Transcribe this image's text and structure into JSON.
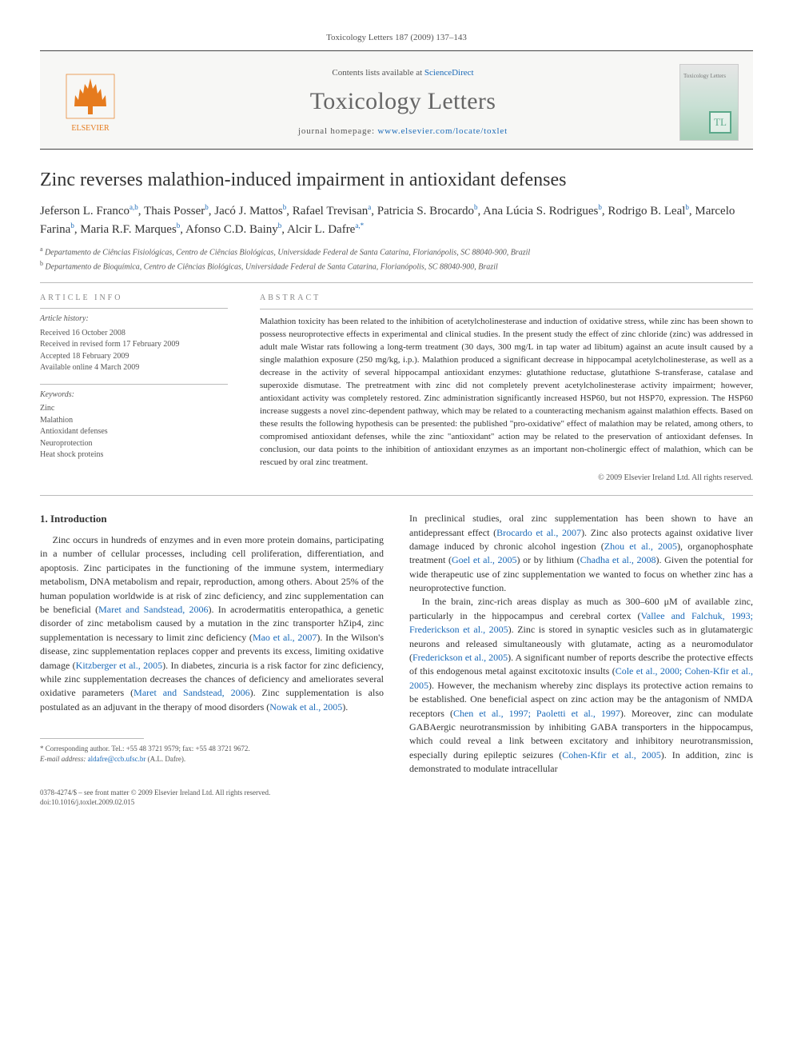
{
  "meta": {
    "top_citation": "Toxicology Letters 187 (2009) 137–143",
    "contents_prefix": "Contents lists available at ",
    "contents_link": "ScienceDirect",
    "journal_name": "Toxicology Letters",
    "homepage_prefix": "journal homepage: ",
    "homepage_url": "www.elsevier.com/locate/toxlet",
    "publisher_logo_label": "ELSEVIER",
    "cover_label": "Toxicology Letters",
    "cover_tl": "TL"
  },
  "article": {
    "title": "Zinc reverses malathion-induced impairment in antioxidant defenses",
    "authors_html": "Jeferson L. Franco<sup>a,b</sup>, Thais Posser<sup>b</sup>, Jacó J. Mattos<sup>b</sup>, Rafael Trevisan<sup>a</sup>, Patricia S. Brocardo<sup>b</sup>, Ana Lúcia S. Rodrigues<sup>b</sup>, Rodrigo B. Leal<sup>b</sup>, Marcelo Farina<sup>b</sup>, Maria R.F. Marques<sup>b</sup>, Afonso C.D. Bainy<sup>b</sup>, Alcir L. Dafre<sup>a,*</sup>",
    "affiliations": {
      "a": "Departamento de Ciências Fisiológicas, Centro de Ciências Biológicas, Universidade Federal de Santa Catarina, Florianópolis, SC 88040-900, Brazil",
      "b": "Departamento de Bioquímica, Centro de Ciências Biológicas, Universidade Federal de Santa Catarina, Florianópolis, SC 88040-900, Brazil"
    }
  },
  "info": {
    "head1": "ARTICLE INFO",
    "history_label": "Article history:",
    "history": [
      "Received 16 October 2008",
      "Received in revised form 17 February 2009",
      "Accepted 18 February 2009",
      "Available online 4 March 2009"
    ],
    "keywords_label": "Keywords:",
    "keywords": [
      "Zinc",
      "Malathion",
      "Antioxidant defenses",
      "Neuroprotection",
      "Heat shock proteins"
    ]
  },
  "abstract": {
    "head": "ABSTRACT",
    "text": "Malathion toxicity has been related to the inhibition of acetylcholinesterase and induction of oxidative stress, while zinc has been shown to possess neuroprotective effects in experimental and clinical studies. In the present study the effect of zinc chloride (zinc) was addressed in adult male Wistar rats following a long-term treatment (30 days, 300 mg/L in tap water ad libitum) against an acute insult caused by a single malathion exposure (250 mg/kg, i.p.). Malathion produced a significant decrease in hippocampal acetylcholinesterase, as well as a decrease in the activity of several hippocampal antioxidant enzymes: glutathione reductase, glutathione S-transferase, catalase and superoxide dismutase. The pretreatment with zinc did not completely prevent acetylcholinesterase activity impairment; however, antioxidant activity was completely restored. Zinc administration significantly increased HSP60, but not HSP70, expression. The HSP60 increase suggests a novel zinc-dependent pathway, which may be related to a counteracting mechanism against malathion effects. Based on these results the following hypothesis can be presented: the published \"pro-oxidative\" effect of malathion may be related, among others, to compromised antioxidant defenses, while the zinc \"antioxidant\" action may be related to the preservation of antioxidant defenses. In conclusion, our data points to the inhibition of antioxidant enzymes as an important non-cholinergic effect of malathion, which can be rescued by oral zinc treatment.",
    "copyright": "© 2009 Elsevier Ireland Ltd. All rights reserved."
  },
  "body": {
    "section_num": "1.",
    "section_title": "Introduction",
    "left_p1": "Zinc occurs in hundreds of enzymes and in even more protein domains, participating in a number of cellular processes, including cell proliferation, differentiation, and apoptosis. Zinc participates in the functioning of the immune system, intermediary metabolism, DNA metabolism and repair, reproduction, among others. About 25% of the human population worldwide is at risk of zinc deficiency, and zinc supplementation can be beneficial (",
    "cite1": "Maret and Sandstead, 2006",
    "left_p1b": "). In acrodermatitis enteropathica, a genetic disorder of zinc metabolism caused by a mutation in the zinc transporter hZip4, zinc supplementation is necessary to limit zinc deficiency (",
    "cite2": "Mao et al., 2007",
    "left_p1c": "). In the Wilson's disease, zinc supplementation replaces copper and prevents its excess, limiting oxidative damage (",
    "cite3": "Kitzberger et al., 2005",
    "left_p1d": "). In diabetes, zincuria is a risk factor for zinc deficiency, while zinc supplementation decreases the chances of deficiency and ameliorates several oxidative parameters (",
    "cite4": "Maret and Sandstead, 2006",
    "left_p1e": "). Zinc supplementation is also postulated as an adjuvant in the therapy of mood disorders (",
    "cite5": "Nowak et al., 2005",
    "left_p1f": ").",
    "right_p1a": "In preclinical studies, oral zinc supplementation has been shown to have an antidepressant effect (",
    "cite6": "Brocardo et al., 2007",
    "right_p1b": "). Zinc also protects against oxidative liver damage induced by chronic alcohol ingestion (",
    "cite7": "Zhou et al., 2005",
    "right_p1c": "), organophosphate treatment (",
    "cite8": "Goel et al., 2005",
    "right_p1d": ") or by lithium (",
    "cite9": "Chadha et al., 2008",
    "right_p1e": "). Given the potential for wide therapeutic use of zinc supplementation we wanted to focus on whether zinc has a neuroprotective function.",
    "right_p2a": "In the brain, zinc-rich areas display as much as 300–600 μM of available zinc, particularly in the hippocampus and cerebral cortex (",
    "cite10": "Vallee and Falchuk, 1993; Frederickson et al., 2005",
    "right_p2b": "). Zinc is stored in synaptic vesicles such as in glutamatergic neurons and released simultaneously with glutamate, acting as a neuromodulator (",
    "cite11": "Frederickson et al., 2005",
    "right_p2c": "). A significant number of reports describe the protective effects of this endogenous metal against excitotoxic insults (",
    "cite12": "Cole et al., 2000; Cohen-Kfir et al., 2005",
    "right_p2d": "). However, the mechanism whereby zinc displays its protective action remains to be established. One beneficial aspect on zinc action may be the antagonism of NMDA receptors (",
    "cite13": "Chen et al., 1997; Paoletti et al., 1997",
    "right_p2e": "). Moreover, zinc can modulate GABAergic neurotransmission by inhibiting GABA transporters in the hippocampus, which could reveal a link between excitatory and inhibitory neurotransmission, especially during epileptic seizures (",
    "cite14": "Cohen-Kfir et al., 2005",
    "right_p2f": "). In addition, zinc is demonstrated to modulate intracellular"
  },
  "footnote": {
    "corr": "* Corresponding author. Tel.: +55 48 3721 9579; fax: +55 48 3721 9672.",
    "email_label": "E-mail address: ",
    "email": "aldafre@ccb.ufsc.br",
    "email_who": " (A.L. Dafre)."
  },
  "bottom": {
    "issn": "0378-4274/$ – see front matter © 2009 Elsevier Ireland Ltd. All rights reserved.",
    "doi": "doi:10.1016/j.toxlet.2009.02.015"
  },
  "colors": {
    "link": "#1b6ab8",
    "elsevier": "#e67b1e",
    "rule": "#bbbbbb",
    "text": "#333333",
    "muted": "#555555"
  }
}
